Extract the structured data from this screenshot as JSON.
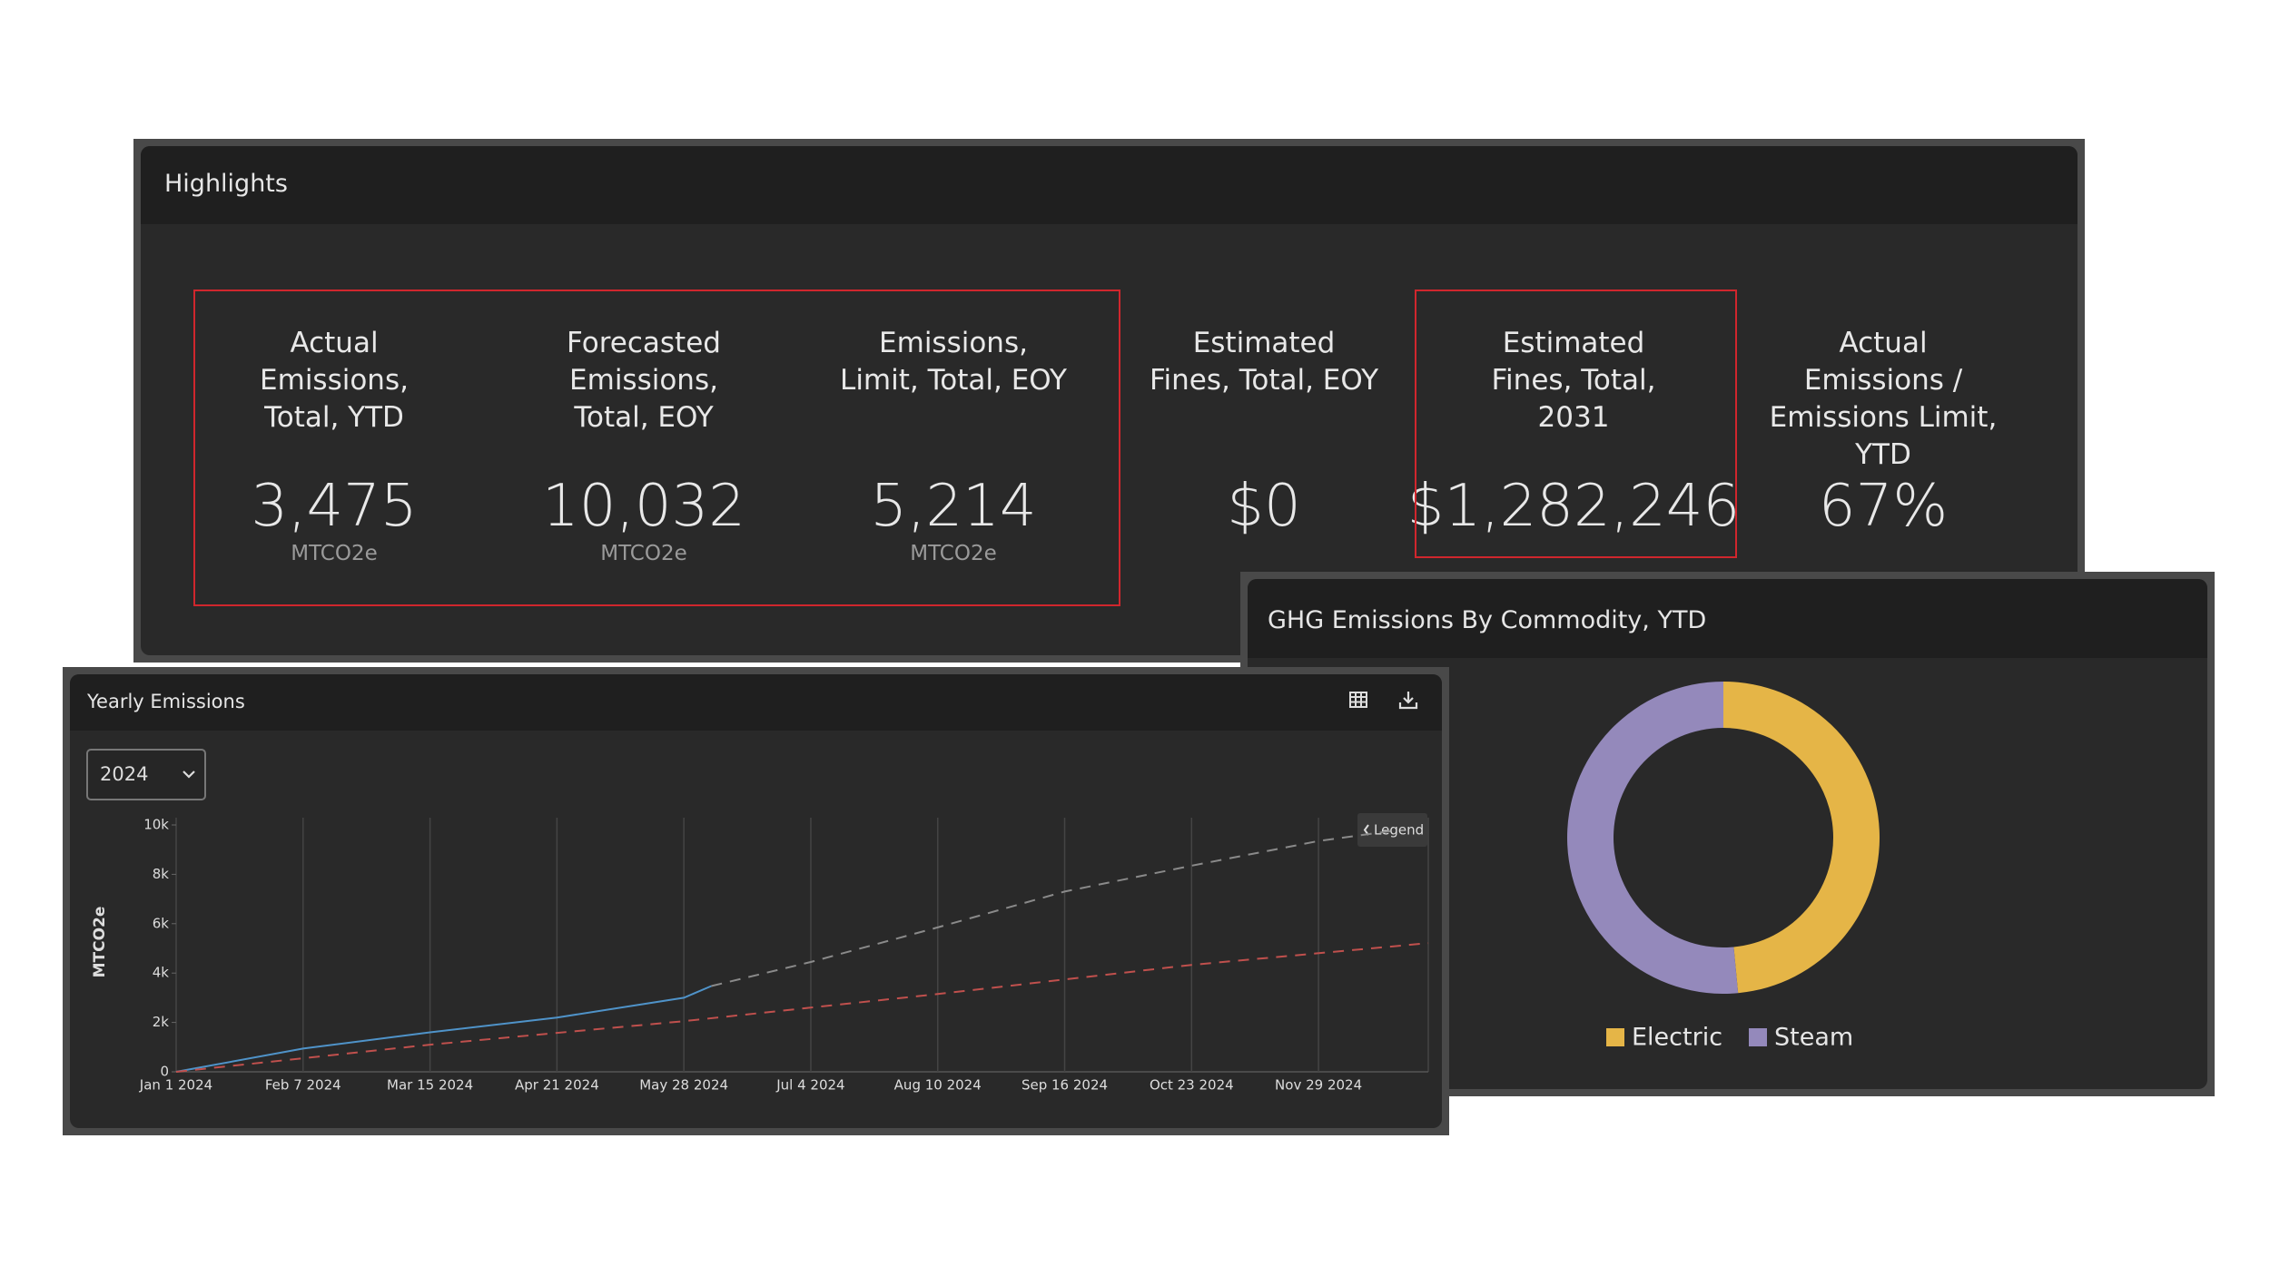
{
  "highlights": {
    "title": "Highlights",
    "kpis": [
      {
        "label": [
          "Actual",
          "Emissions,",
          "Total, YTD"
        ],
        "value": "3,475",
        "unit": "MTCO2e"
      },
      {
        "label": [
          "Forecasted",
          "Emissions,",
          "Total, EOY"
        ],
        "value": "10,032",
        "unit": "MTCO2e"
      },
      {
        "label": [
          "Emissions,",
          "Limit, Total, EOY"
        ],
        "value": "5,214",
        "unit": "MTCO2e"
      },
      {
        "label": [
          "Estimated",
          "Fines, Total, EOY"
        ],
        "value": "$0"
      },
      {
        "label": [
          "Estimated",
          "Fines, Total,",
          "2031"
        ],
        "value": "$1,282,246"
      },
      {
        "label": [
          "Actual",
          "Emissions /",
          "Emissions Limit,",
          "YTD"
        ],
        "value": "67%"
      }
    ]
  },
  "yearly_panel": {
    "year_select": "2024",
    "legend_button": "Legend"
  },
  "chart_data": [
    {
      "type": "line",
      "title": "Yearly Emissions",
      "y_label": "MTCO2e",
      "grid": "x",
      "xlim": [
        "2024-01-01",
        "2024-12-31"
      ],
      "xticks": [
        {
          "value": "2024-01-01",
          "label": "Jan 1 2024"
        },
        {
          "value": "2024-02-07",
          "label": "Feb 7 2024"
        },
        {
          "value": "2024-03-15",
          "label": "Mar 15 2024"
        },
        {
          "value": "2024-04-21",
          "label": "Apr 21 2024"
        },
        {
          "value": "2024-05-28",
          "label": "May 28 2024"
        },
        {
          "value": "2024-07-04",
          "label": "Jul 4 2024"
        },
        {
          "value": "2024-08-10",
          "label": "Aug 10 2024"
        },
        {
          "value": "2024-09-16",
          "label": "Sep 16 2024"
        },
        {
          "value": "2024-10-23",
          "label": "Oct 23 2024"
        },
        {
          "value": "2024-11-29",
          "label": "Nov 29 2024"
        }
      ],
      "ylim": [
        0,
        10000
      ],
      "yticks": [
        0,
        {
          "value": 2000,
          "label": "2k"
        },
        {
          "value": 4000,
          "label": "4k"
        },
        {
          "value": 6000,
          "label": "6k"
        },
        {
          "value": 8000,
          "label": "8k"
        },
        {
          "value": 10000,
          "label": "10k"
        }
      ],
      "series": [
        {
          "color": "#4f93c9",
          "style": "solid",
          "x": [
            "2024-01-01",
            "2024-02-07",
            "2024-03-15",
            "2024-04-21",
            "2024-05-28",
            "2024-06-05"
          ],
          "values": [
            0,
            940,
            1600,
            2200,
            3000,
            3475
          ]
        },
        {
          "color": "#8a8a8a",
          "style": "dashed",
          "x": [
            "2024-06-05",
            "2024-07-04",
            "2024-08-10",
            "2024-09-16",
            "2024-10-23",
            "2024-11-29",
            "2024-12-20"
          ],
          "values": [
            3475,
            4450,
            5850,
            7300,
            8350,
            9350,
            9750
          ]
        },
        {
          "color": "#c0504d",
          "style": "dashed",
          "x": [
            "2024-01-01",
            "2024-03-15",
            "2024-05-28",
            "2024-08-10",
            "2024-10-23",
            "2024-12-31"
          ],
          "values": [
            0,
            1100,
            2050,
            3150,
            4330,
            5214
          ]
        }
      ]
    },
    {
      "type": "pie",
      "title": "GHG Emissions By Commodity, YTD",
      "categories": [
        "Electric",
        "Steam"
      ],
      "values": [
        48.5,
        51.5
      ],
      "colors": [
        "#e5b547",
        "#9489bb"
      ]
    }
  ]
}
